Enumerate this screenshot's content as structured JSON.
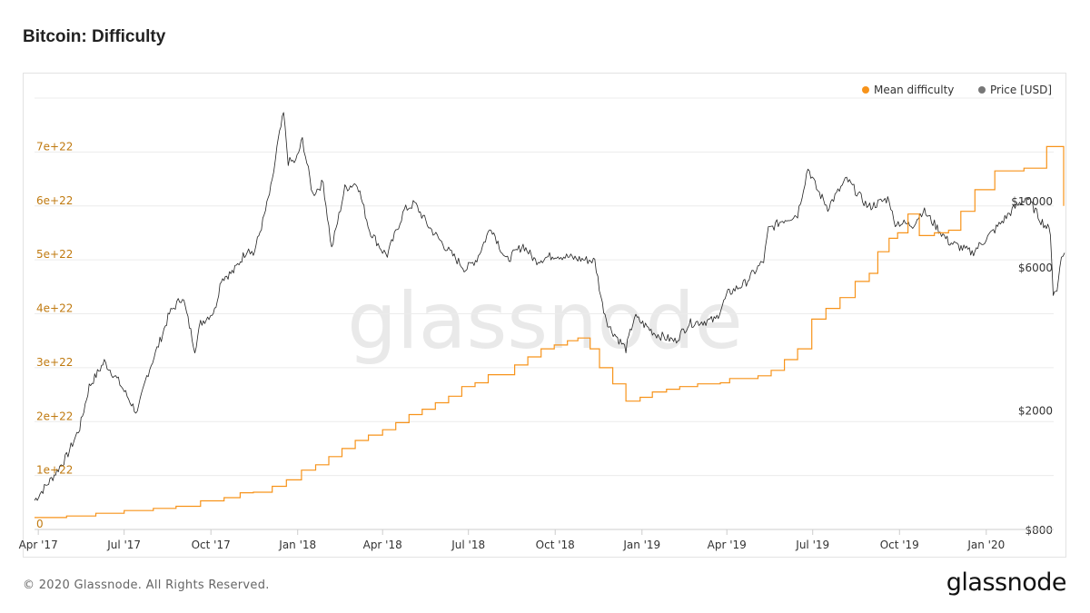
{
  "page": {
    "title": "Bitcoin: Difficulty"
  },
  "footer": {
    "copyright": "© 2020 Glassnode. All Rights Reserved.",
    "logo": "glassnode"
  },
  "watermark": "glassnode",
  "colors": {
    "difficulty": "#f7931a",
    "difficulty_axis": "#c07a10",
    "price": "#222222",
    "price_legend": "#777777",
    "grid": "#ececec"
  },
  "legend": [
    {
      "label": "Mean difficulty",
      "color": "#f7931a"
    },
    {
      "label": "Price [USD]",
      "color": "#777777"
    }
  ],
  "chart_data": {
    "type": "line",
    "title": "Bitcoin: Difficulty",
    "legend_position": "top-right",
    "grid": true,
    "x_range": [
      "2017-03-28",
      "2020-03-24"
    ],
    "x_ticks": [
      {
        "date": "2017-04-01",
        "label": "Apr '17"
      },
      {
        "date": "2017-07-01",
        "label": "Jul '17"
      },
      {
        "date": "2017-10-01",
        "label": "Oct '17"
      },
      {
        "date": "2018-01-01",
        "label": "Jan '18"
      },
      {
        "date": "2018-04-01",
        "label": "Apr '18"
      },
      {
        "date": "2018-07-01",
        "label": "Jul '18"
      },
      {
        "date": "2018-10-01",
        "label": "Oct '18"
      },
      {
        "date": "2019-01-01",
        "label": "Jan '19"
      },
      {
        "date": "2019-04-01",
        "label": "Apr '19"
      },
      {
        "date": "2019-07-01",
        "label": "Jul '19"
      },
      {
        "date": "2019-10-01",
        "label": "Oct '19"
      },
      {
        "date": "2020-01-01",
        "label": "Jan '20"
      }
    ],
    "y_left": {
      "range": [
        0,
        8e+22
      ],
      "ticks": [
        {
          "value": 0,
          "label": "0"
        },
        {
          "value": 1e+22,
          "label": "1e+22"
        },
        {
          "value": 2e+22,
          "label": "2e+22"
        },
        {
          "value": 3e+22,
          "label": "3e+22"
        },
        {
          "value": 4e+22,
          "label": "4e+22"
        },
        {
          "value": 5e+22,
          "label": "5e+22"
        },
        {
          "value": 6e+22,
          "label": "6e+22"
        },
        {
          "value": 7e+22,
          "label": "7e+22"
        }
      ]
    },
    "y_right": {
      "scale": "log",
      "range": [
        800,
        22000
      ],
      "ticks": [
        {
          "value": 800,
          "label": "$800"
        },
        {
          "value": 2000,
          "label": "$2000"
        },
        {
          "value": 6000,
          "label": "$6000"
        },
        {
          "value": 10000,
          "label": "$10000"
        }
      ]
    },
    "series": [
      {
        "name": "Mean difficulty",
        "axis": "left",
        "step": true,
        "points": [
          [
            "2017-03-28",
            2.2e+21
          ],
          [
            "2017-05-01",
            2.5e+21
          ],
          [
            "2017-06-01",
            3e+21
          ],
          [
            "2017-07-01",
            3.5e+21
          ],
          [
            "2017-08-01",
            3.9e+21
          ],
          [
            "2017-08-25",
            4.3e+21
          ],
          [
            "2017-09-20",
            5.3e+21
          ],
          [
            "2017-10-15",
            5.9e+21
          ],
          [
            "2017-11-01",
            6.8e+21
          ],
          [
            "2017-11-15",
            6.9e+21
          ],
          [
            "2017-12-05",
            8e+21
          ],
          [
            "2017-12-20",
            9.2e+21
          ],
          [
            "2018-01-05",
            1.1e+22
          ],
          [
            "2018-01-20",
            1.2e+22
          ],
          [
            "2018-02-03",
            1.35e+22
          ],
          [
            "2018-02-17",
            1.5e+22
          ],
          [
            "2018-03-03",
            1.65e+22
          ],
          [
            "2018-03-17",
            1.75e+22
          ],
          [
            "2018-04-01",
            1.85e+22
          ],
          [
            "2018-04-15",
            1.98e+22
          ],
          [
            "2018-04-29",
            2.13e+22
          ],
          [
            "2018-05-13",
            2.23e+22
          ],
          [
            "2018-05-27",
            2.35e+22
          ],
          [
            "2018-06-10",
            2.47e+22
          ],
          [
            "2018-06-24",
            2.65e+22
          ],
          [
            "2018-07-08",
            2.72e+22
          ],
          [
            "2018-07-22",
            2.87e+22
          ],
          [
            "2018-08-05",
            2.87e+22
          ],
          [
            "2018-08-19",
            3.05e+22
          ],
          [
            "2018-09-02",
            3.2e+22
          ],
          [
            "2018-09-16",
            3.35e+22
          ],
          [
            "2018-09-30",
            3.42e+22
          ],
          [
            "2018-10-14",
            3.5e+22
          ],
          [
            "2018-10-25",
            3.55e+22
          ],
          [
            "2018-11-07",
            3.35e+22
          ],
          [
            "2018-11-17",
            3e+22
          ],
          [
            "2018-12-01",
            2.7e+22
          ],
          [
            "2018-12-15",
            2.38e+22
          ],
          [
            "2018-12-30",
            2.45e+22
          ],
          [
            "2019-01-12",
            2.55e+22
          ],
          [
            "2019-01-27",
            2.6e+22
          ],
          [
            "2019-02-10",
            2.65e+22
          ],
          [
            "2019-03-01",
            2.7e+22
          ],
          [
            "2019-03-25",
            2.72e+22
          ],
          [
            "2019-04-04",
            2.8e+22
          ],
          [
            "2019-05-04",
            2.85e+22
          ],
          [
            "2019-05-18",
            2.95e+22
          ],
          [
            "2019-06-01",
            3.15e+22
          ],
          [
            "2019-06-15",
            3.35e+22
          ],
          [
            "2019-06-30",
            3.9e+22
          ],
          [
            "2019-07-15",
            4.1e+22
          ],
          [
            "2019-07-30",
            4.3e+22
          ],
          [
            "2019-08-15",
            4.6e+22
          ],
          [
            "2019-08-30",
            4.75e+22
          ],
          [
            "2019-09-08",
            5.15e+22
          ],
          [
            "2019-09-20",
            5.4e+22
          ],
          [
            "2019-09-29",
            5.5e+22
          ],
          [
            "2019-10-10",
            5.85e+22
          ],
          [
            "2019-10-22",
            5.45e+22
          ],
          [
            "2019-11-07",
            5.5e+22
          ],
          [
            "2019-11-22",
            5.55e+22
          ],
          [
            "2019-12-05",
            5.9e+22
          ],
          [
            "2019-12-20",
            6.3e+22
          ],
          [
            "2020-01-10",
            6.65e+22
          ],
          [
            "2020-02-01",
            6.65e+22
          ],
          [
            "2020-02-10",
            6.7e+22
          ],
          [
            "2020-03-05",
            7.1e+22
          ],
          [
            "2020-03-19",
            7.1e+22
          ],
          [
            "2020-03-23",
            6e+22
          ]
        ]
      },
      {
        "name": "Price [USD]",
        "axis": "right",
        "points": [
          [
            "2017-03-28",
            1000
          ],
          [
            "2017-04-15",
            1180
          ],
          [
            "2017-05-01",
            1400
          ],
          [
            "2017-05-15",
            1750
          ],
          [
            "2017-05-25",
            2400
          ],
          [
            "2017-06-10",
            2900
          ],
          [
            "2017-06-25",
            2500
          ],
          [
            "2017-07-15",
            1950
          ],
          [
            "2017-07-25",
            2600
          ],
          [
            "2017-08-08",
            3400
          ],
          [
            "2017-08-18",
            4200
          ],
          [
            "2017-09-01",
            4800
          ],
          [
            "2017-09-14",
            3200
          ],
          [
            "2017-09-20",
            3900
          ],
          [
            "2017-10-05",
            4300
          ],
          [
            "2017-10-12",
            5500
          ],
          [
            "2017-10-25",
            5800
          ],
          [
            "2017-11-10",
            7000
          ],
          [
            "2017-11-15",
            6600
          ],
          [
            "2017-11-25",
            8500
          ],
          [
            "2017-12-05",
            11500
          ],
          [
            "2017-12-10",
            15000
          ],
          [
            "2017-12-17",
            19500
          ],
          [
            "2017-12-22",
            13500
          ],
          [
            "2017-12-30",
            13500
          ],
          [
            "2018-01-06",
            16000
          ],
          [
            "2018-01-17",
            10500
          ],
          [
            "2018-01-28",
            11500
          ],
          [
            "2018-02-06",
            6900
          ],
          [
            "2018-02-20",
            11000
          ],
          [
            "2018-03-05",
            11500
          ],
          [
            "2018-03-18",
            8000
          ],
          [
            "2018-04-01",
            6800
          ],
          [
            "2018-04-06",
            6600
          ],
          [
            "2018-04-24",
            9300
          ],
          [
            "2018-05-05",
            9800
          ],
          [
            "2018-05-20",
            8200
          ],
          [
            "2018-06-10",
            6800
          ],
          [
            "2018-06-28",
            5900
          ],
          [
            "2018-07-10",
            6400
          ],
          [
            "2018-07-25",
            8200
          ],
          [
            "2018-08-10",
            6300
          ],
          [
            "2018-08-28",
            7100
          ],
          [
            "2018-09-10",
            6300
          ],
          [
            "2018-10-01",
            6600
          ],
          [
            "2018-10-25",
            6400
          ],
          [
            "2018-11-12",
            6300
          ],
          [
            "2018-11-20",
            4500
          ],
          [
            "2018-11-27",
            3800
          ],
          [
            "2018-12-15",
            3200
          ],
          [
            "2018-12-24",
            4100
          ],
          [
            "2019-01-15",
            3600
          ],
          [
            "2019-02-05",
            3400
          ],
          [
            "2019-02-20",
            3900
          ],
          [
            "2019-03-20",
            4000
          ],
          [
            "2019-04-02",
            4900
          ],
          [
            "2019-04-20",
            5300
          ],
          [
            "2019-05-10",
            6300
          ],
          [
            "2019-05-15",
            8000
          ],
          [
            "2019-05-30",
            8600
          ],
          [
            "2019-06-15",
            9000
          ],
          [
            "2019-06-26",
            12900
          ],
          [
            "2019-07-05",
            11000
          ],
          [
            "2019-07-17",
            9500
          ],
          [
            "2019-08-06",
            11800
          ],
          [
            "2019-08-29",
            9500
          ],
          [
            "2019-09-20",
            10200
          ],
          [
            "2019-09-25",
            8500
          ],
          [
            "2019-10-15",
            8300
          ],
          [
            "2019-10-26",
            9300
          ],
          [
            "2019-11-22",
            7300
          ],
          [
            "2019-12-17",
            6700
          ],
          [
            "2020-01-10",
            8000
          ],
          [
            "2020-01-30",
            9400
          ],
          [
            "2020-02-13",
            10300
          ],
          [
            "2020-02-28",
            8600
          ],
          [
            "2020-03-09",
            7900
          ],
          [
            "2020-03-12",
            4900
          ],
          [
            "2020-03-16",
            5000
          ],
          [
            "2020-03-19",
            6200
          ],
          [
            "2020-03-24",
            6700
          ]
        ]
      }
    ]
  }
}
